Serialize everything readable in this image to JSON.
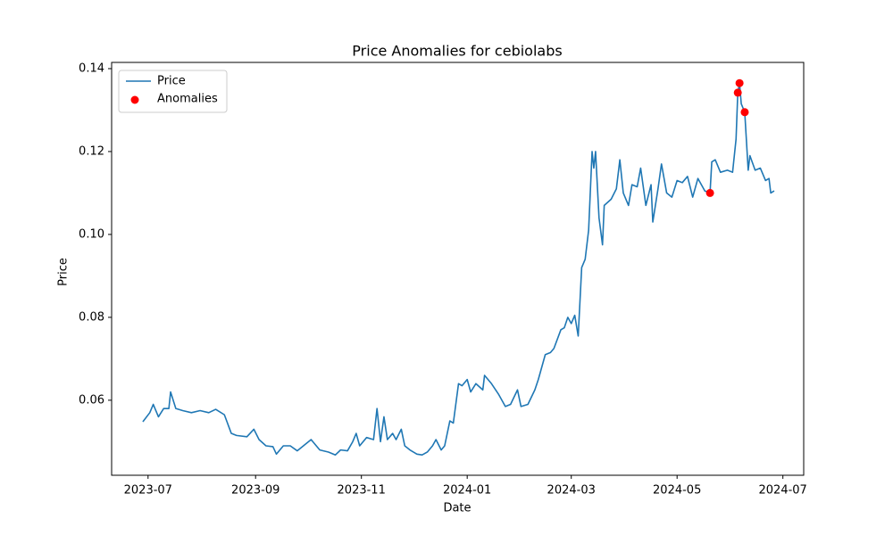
{
  "chart_data": {
    "type": "line",
    "title": "Price Anomalies for cebiolabs",
    "x_label": "Date",
    "y_label": "Price",
    "xlim": [
      "2023-06-10",
      "2024-07-13"
    ],
    "xticks": [
      {
        "value": "2023-07-01",
        "label": "2023-07"
      },
      {
        "value": "2023-09-01",
        "label": "2023-09"
      },
      {
        "value": "2023-11-01",
        "label": "2023-11"
      },
      {
        "value": "2024-01-01",
        "label": "2024-01"
      },
      {
        "value": "2024-03-01",
        "label": "2024-03"
      },
      {
        "value": "2024-05-01",
        "label": "2024-05"
      },
      {
        "value": "2024-07-01",
        "label": "2024-07"
      }
    ],
    "ylim": [
      0.0419,
      0.1415
    ],
    "yticks": [
      0.06,
      0.08,
      {
        "value": 0.1,
        "label": "0.10"
      },
      0.12,
      0.14
    ],
    "grid": false,
    "legend": "upper left",
    "series": [
      {
        "name": "Price",
        "type": "line",
        "color": "#1f77b4",
        "x": [
          "2023-06-28",
          "2023-07-02",
          "2023-07-04",
          "2023-07-07",
          "2023-07-10",
          "2023-07-13",
          "2023-07-14",
          "2023-07-17",
          "2023-07-21",
          "2023-07-26",
          "2023-07-31",
          "2023-08-05",
          "2023-08-09",
          "2023-08-14",
          "2023-08-18",
          "2023-08-21",
          "2023-08-27",
          "2023-08-31",
          "2023-09-03",
          "2023-09-07",
          "2023-09-11",
          "2023-09-13",
          "2023-09-17",
          "2023-09-21",
          "2023-09-25",
          "2023-10-03",
          "2023-10-08",
          "2023-10-13",
          "2023-10-17",
          "2023-10-20",
          "2023-10-24",
          "2023-10-27",
          "2023-10-29",
          "2023-10-31",
          "2023-11-04",
          "2023-11-08",
          "2023-11-10",
          "2023-11-12",
          "2023-11-14",
          "2023-11-16",
          "2023-11-19",
          "2023-11-21",
          "2023-11-24",
          "2023-11-26",
          "2023-11-29",
          "2023-12-03",
          "2023-12-06",
          "2023-12-09",
          "2023-12-12",
          "2023-12-14",
          "2023-12-17",
          "2023-12-19",
          "2023-12-22",
          "2023-12-24",
          "2023-12-27",
          "2023-12-29",
          "2024-01-01",
          "2024-01-03",
          "2024-01-06",
          "2024-01-10",
          "2024-01-11",
          "2024-01-15",
          "2024-01-19",
          "2024-01-23",
          "2024-01-26",
          "2024-01-30",
          "2024-02-01",
          "2024-02-05",
          "2024-02-09",
          "2024-02-11",
          "2024-02-15",
          "2024-02-18",
          "2024-02-20",
          "2024-02-24",
          "2024-02-26",
          "2024-02-28",
          "2024-03-01",
          "2024-03-03",
          "2024-03-05",
          "2024-03-07",
          "2024-03-09",
          "2024-03-11",
          "2024-03-13",
          "2024-03-14",
          "2024-03-15",
          "2024-03-17",
          "2024-03-19",
          "2024-03-20",
          "2024-03-24",
          "2024-03-27",
          "2024-03-29",
          "2024-03-31",
          "2024-04-03",
          "2024-04-05",
          "2024-04-08",
          "2024-04-10",
          "2024-04-13",
          "2024-04-16",
          "2024-04-17",
          "2024-04-20",
          "2024-04-22",
          "2024-04-25",
          "2024-04-28",
          "2024-05-01",
          "2024-05-04",
          "2024-05-07",
          "2024-05-10",
          "2024-05-13",
          "2024-05-17",
          "2024-05-20",
          "2024-05-21",
          "2024-05-23",
          "2024-05-26",
          "2024-05-30",
          "2024-06-02",
          "2024-06-04",
          "2024-06-05",
          "2024-06-06",
          "2024-06-07",
          "2024-06-09",
          "2024-06-11",
          "2024-06-12",
          "2024-06-15",
          "2024-06-18",
          "2024-06-21",
          "2024-06-23",
          "2024-06-24",
          "2024-06-26"
        ],
        "values": [
          0.0548,
          0.057,
          0.059,
          0.056,
          0.058,
          0.058,
          0.062,
          0.058,
          0.0575,
          0.057,
          0.0575,
          0.057,
          0.0578,
          0.0565,
          0.052,
          0.0515,
          0.0512,
          0.053,
          0.0505,
          0.049,
          0.0488,
          0.047,
          0.049,
          0.049,
          0.0478,
          0.0505,
          0.048,
          0.0475,
          0.0468,
          0.048,
          0.0478,
          0.05,
          0.052,
          0.049,
          0.051,
          0.0505,
          0.058,
          0.05,
          0.056,
          0.0505,
          0.052,
          0.0505,
          0.053,
          0.049,
          0.048,
          0.047,
          0.0468,
          0.0475,
          0.049,
          0.0505,
          0.048,
          0.049,
          0.055,
          0.0545,
          0.064,
          0.0635,
          0.065,
          0.062,
          0.064,
          0.0625,
          0.066,
          0.064,
          0.0615,
          0.0585,
          0.059,
          0.0625,
          0.0585,
          0.059,
          0.0625,
          0.065,
          0.071,
          0.0715,
          0.0725,
          0.077,
          0.0775,
          0.08,
          0.0785,
          0.0805,
          0.0755,
          0.092,
          0.094,
          0.101,
          0.12,
          0.116,
          0.12,
          0.104,
          0.0975,
          0.107,
          0.1085,
          0.111,
          0.118,
          0.11,
          0.107,
          0.112,
          0.1115,
          0.116,
          0.107,
          0.112,
          0.103,
          0.111,
          0.117,
          0.11,
          0.109,
          0.113,
          0.1125,
          0.114,
          0.109,
          0.1135,
          0.1105,
          0.11,
          0.1175,
          0.118,
          0.115,
          0.1155,
          0.115,
          0.123,
          0.1342,
          0.1365,
          0.1315,
          0.1295,
          0.1155,
          0.119,
          0.1155,
          0.116,
          0.113,
          0.1135,
          0.11,
          0.1105
        ]
      },
      {
        "name": "Anomalies",
        "type": "scatter",
        "color": "#ff0000",
        "x": [
          "2024-05-20",
          "2024-06-05",
          "2024-06-06",
          "2024-06-09"
        ],
        "values": [
          0.11,
          0.1342,
          0.1365,
          0.1295
        ]
      }
    ]
  }
}
